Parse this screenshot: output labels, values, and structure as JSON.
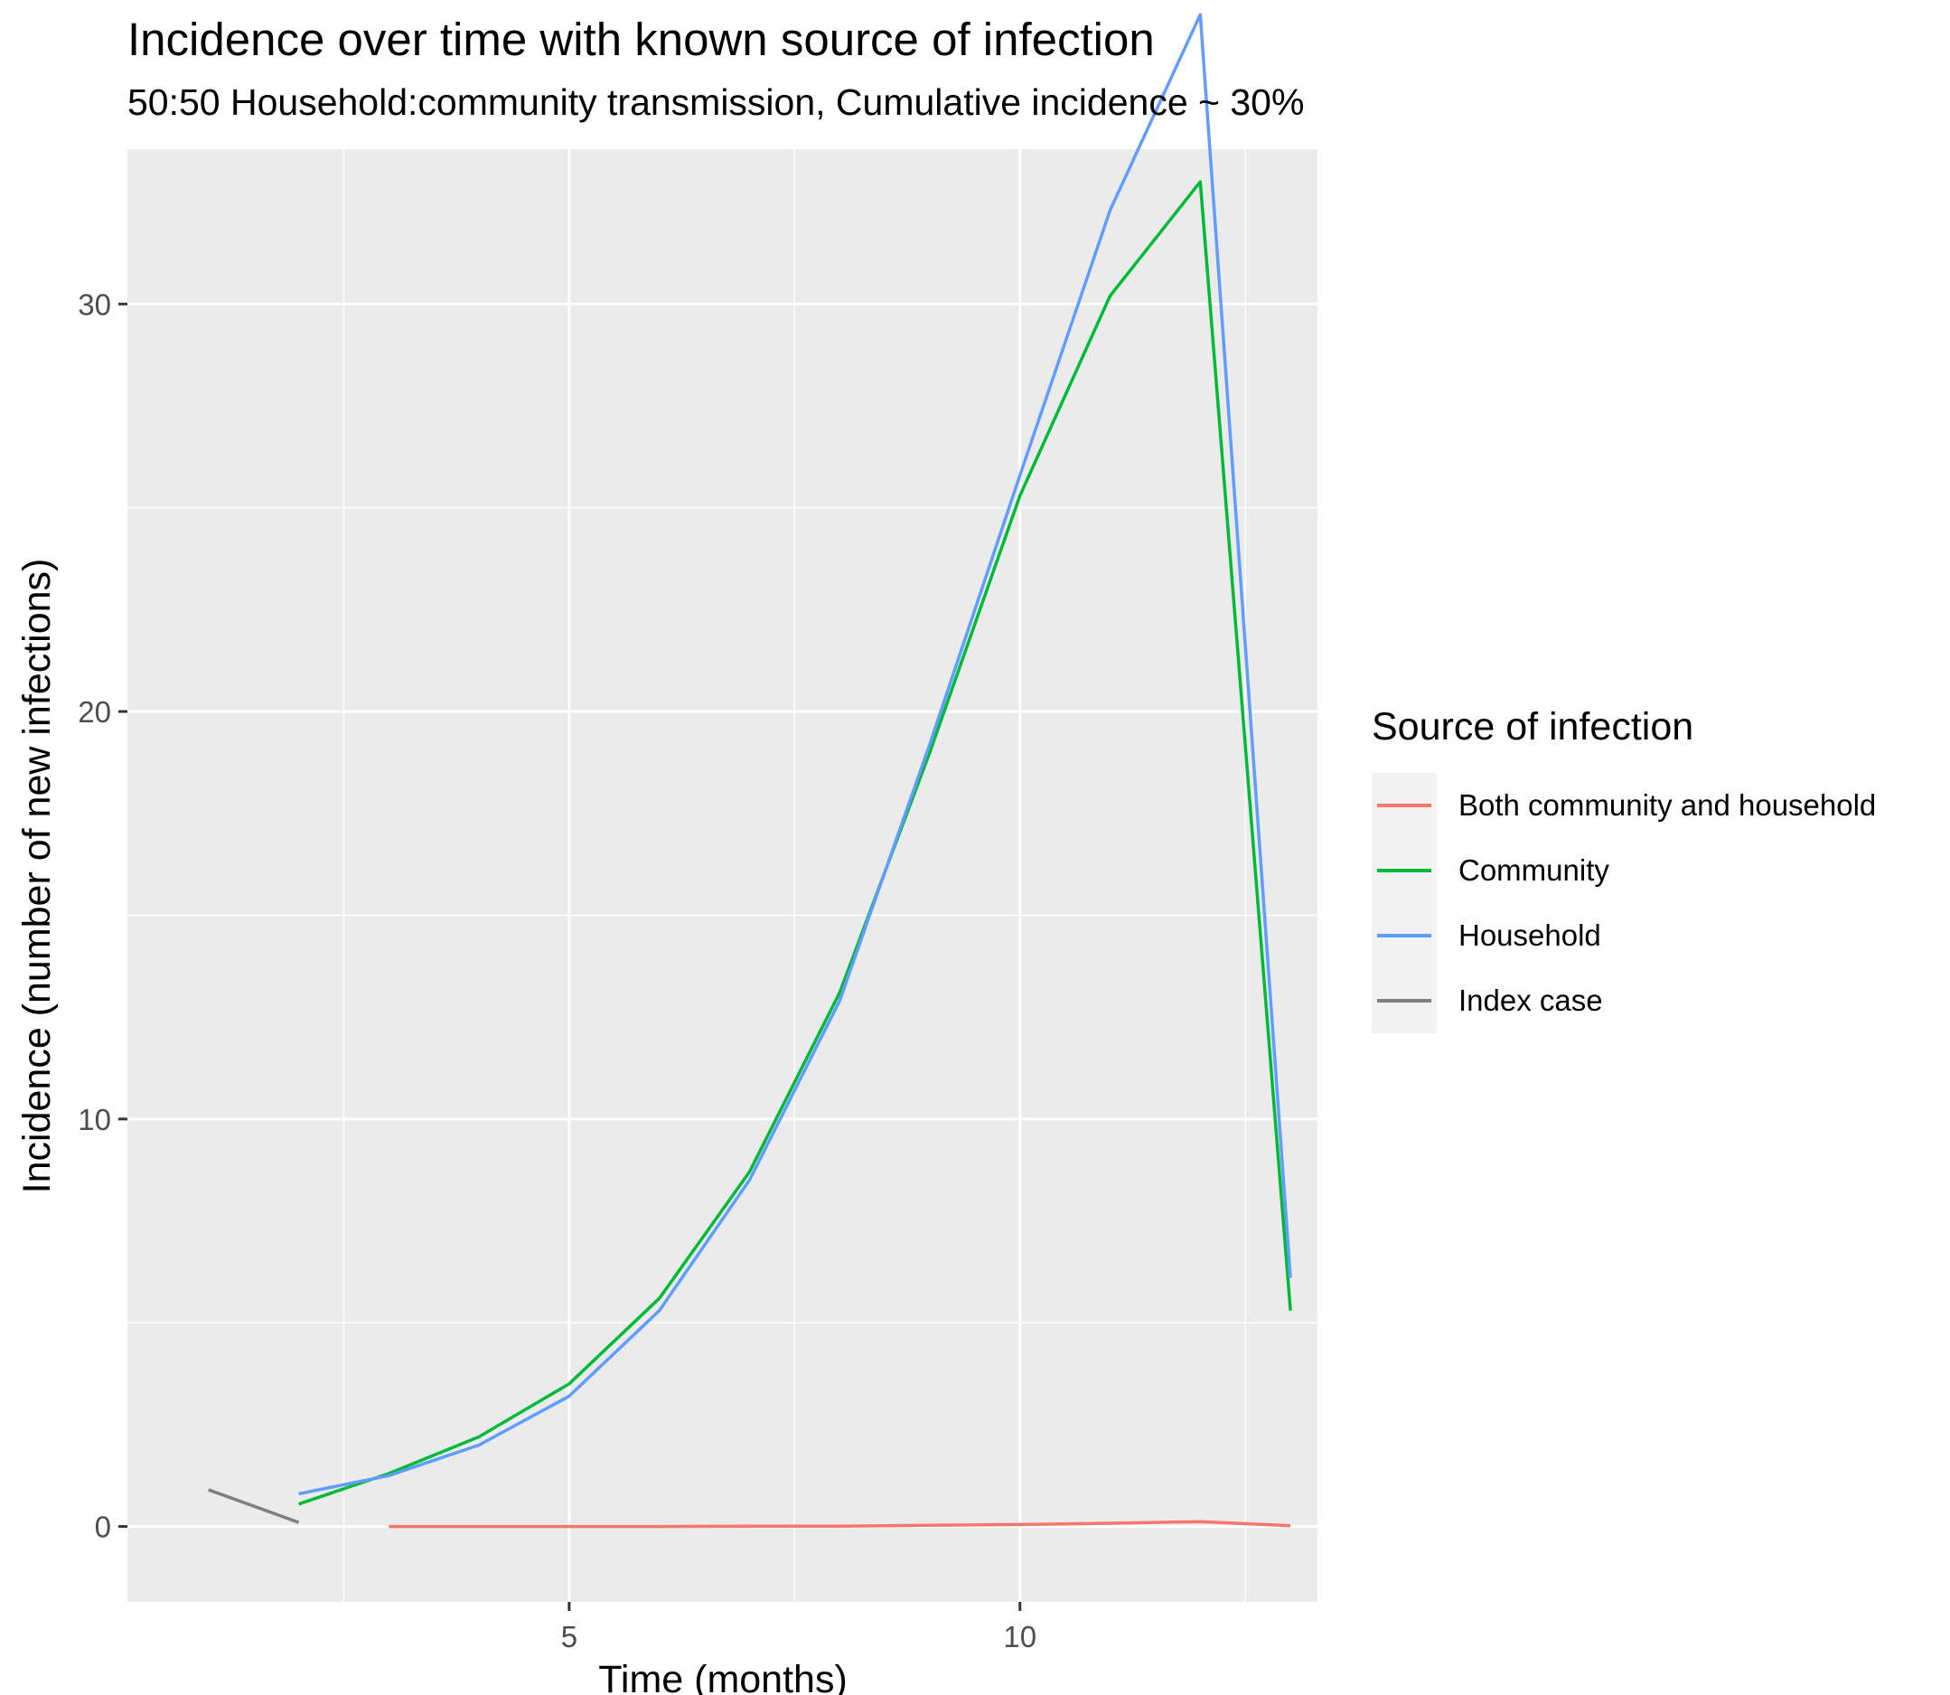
{
  "chart_data": {
    "type": "line",
    "title": "Incidence over time with known source of infection",
    "subtitle": "50:50 Household:community transmission, Cumulative incidence ~ 30%",
    "xlabel": "Time (months)",
    "ylabel": "Incidence (number of new infections)",
    "xlim": [
      0.1,
      13.3
    ],
    "ylim": [
      -1.85,
      33.8
    ],
    "x_ticks": [
      5,
      10
    ],
    "x_minor": [
      2.5,
      7.5,
      12.5
    ],
    "y_ticks": [
      0,
      10,
      20,
      30
    ],
    "y_minor": [
      5,
      15,
      25
    ],
    "grid": true,
    "legend": {
      "title": "Source of infection",
      "placement": "right"
    },
    "series": [
      {
        "name": "Both community and household",
        "color": "#F8766D",
        "x": [
          3,
          4,
          5,
          6,
          7,
          8,
          9,
          10,
          11,
          12,
          13
        ],
        "values": [
          0.0,
          0.0,
          0.0,
          0.0,
          0.01,
          0.01,
          0.03,
          0.05,
          0.08,
          0.12,
          0.02
        ]
      },
      {
        "name": "Community",
        "color": "#00BA38",
        "x": [
          2,
          3,
          4,
          5,
          6,
          7,
          8,
          9,
          10,
          11,
          12,
          13
        ],
        "values": [
          0.55,
          1.3,
          2.2,
          3.5,
          5.6,
          8.7,
          13.1,
          19.0,
          25.3,
          30.2,
          33.0,
          5.3
        ]
      },
      {
        "name": "Household",
        "color": "#619CFF",
        "x": [
          2,
          3,
          4,
          5,
          6,
          7,
          8,
          9,
          10,
          11,
          12,
          13
        ],
        "values": [
          0.8,
          1.25,
          2.0,
          3.2,
          5.3,
          8.5,
          12.9,
          19.2,
          25.8,
          32.3,
          37.1,
          6.1
        ]
      },
      {
        "name": "Index case",
        "color": "#7F7F7F",
        "x": [
          1,
          2
        ],
        "values": [
          0.9,
          0.1
        ]
      }
    ]
  }
}
